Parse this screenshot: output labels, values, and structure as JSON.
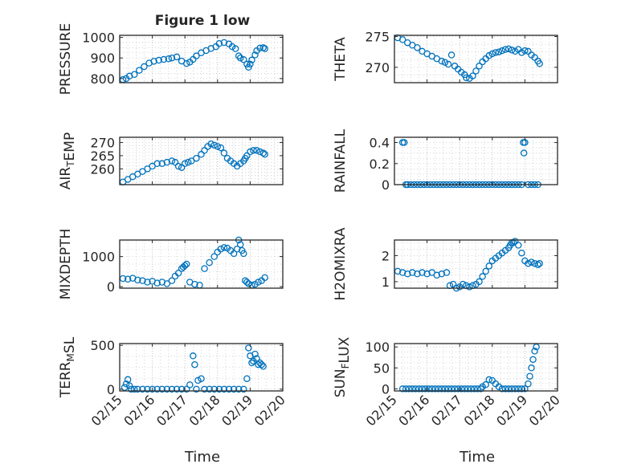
{
  "figure": {
    "title": "Figure 1 low",
    "x_label": "Time"
  },
  "x_ticks": [
    "02/15",
    "02/16",
    "02/17",
    "02/18",
    "02/19",
    "02/20"
  ],
  "colors": {
    "marker": "#0072BD",
    "axes": "#262626",
    "grid": "#b8b8b8"
  },
  "chart_data": [
    {
      "type": "scatter",
      "ylabel": "PRESSURE",
      "xlim": [
        0,
        5
      ],
      "ylim": [
        780,
        1010
      ],
      "yticks": [
        800,
        900,
        1000
      ],
      "grid": true,
      "x": [
        0.1,
        0.2,
        0.3,
        0.45,
        0.6,
        0.75,
        0.9,
        1.05,
        1.2,
        1.35,
        1.5,
        1.6,
        1.75,
        1.9,
        2.05,
        2.15,
        2.25,
        2.35,
        2.5,
        2.65,
        2.8,
        2.95,
        3.05,
        3.2,
        3.35,
        3.45,
        3.55,
        3.65,
        3.7,
        3.8,
        3.9,
        3.95,
        4.0,
        4.05,
        4.15,
        4.2,
        4.3,
        4.4,
        4.45
      ],
      "y": [
        795,
        800,
        812,
        820,
        840,
        858,
        875,
        884,
        889,
        893,
        896,
        900,
        905,
        885,
        873,
        880,
        893,
        910,
        925,
        936,
        946,
        955,
        970,
        975,
        968,
        955,
        945,
        910,
        900,
        892,
        870,
        855,
        870,
        890,
        915,
        935,
        948,
        950,
        945
      ]
    },
    {
      "type": "scatter",
      "ylabel": "THETA",
      "xlim": [
        0,
        5
      ],
      "ylim": [
        267.5,
        275.2
      ],
      "yticks": [
        270,
        275
      ],
      "grid": true,
      "x": [
        0.1,
        0.25,
        0.4,
        0.55,
        0.7,
        0.85,
        1.0,
        1.15,
        1.3,
        1.45,
        1.55,
        1.65,
        1.75,
        1.85,
        1.95,
        2.05,
        2.15,
        2.2,
        2.3,
        2.4,
        2.5,
        2.6,
        2.7,
        2.8,
        2.9,
        3.0,
        3.1,
        3.2,
        3.3,
        3.4,
        3.5,
        3.6,
        3.7,
        3.8,
        3.9,
        4.0,
        4.1,
        4.2,
        4.3,
        4.4,
        4.45
      ],
      "y": [
        274.8,
        274.5,
        274.0,
        273.6,
        273.2,
        272.6,
        272.2,
        271.8,
        271.4,
        271.0,
        270.8,
        270.5,
        272.0,
        270.2,
        269.7,
        269.2,
        268.8,
        268.3,
        268.2,
        268.6,
        269.4,
        270.2,
        270.9,
        271.4,
        271.9,
        272.2,
        272.4,
        272.5,
        272.7,
        272.9,
        273.0,
        272.8,
        272.6,
        272.9,
        272.4,
        272.7,
        272.6,
        272.0,
        271.6,
        271.0,
        270.6
      ]
    },
    {
      "type": "scatter",
      "ylabel": "AIRTEMP",
      "xlim": [
        0,
        5
      ],
      "ylim": [
        254,
        272
      ],
      "yticks": [
        260,
        265,
        270
      ],
      "grid": true,
      "x": [
        0.1,
        0.25,
        0.4,
        0.55,
        0.7,
        0.85,
        1.0,
        1.15,
        1.3,
        1.45,
        1.6,
        1.7,
        1.8,
        1.9,
        2.0,
        2.1,
        2.2,
        2.35,
        2.5,
        2.6,
        2.7,
        2.8,
        2.9,
        3.0,
        3.1,
        3.2,
        3.3,
        3.4,
        3.5,
        3.6,
        3.7,
        3.8,
        3.85,
        3.9,
        4.0,
        4.1,
        4.2,
        4.3,
        4.4,
        4.45
      ],
      "y": [
        255,
        256,
        257,
        258,
        259,
        260,
        261,
        262,
        262,
        262.5,
        263,
        262.5,
        261,
        260.5,
        262,
        262.5,
        263,
        264,
        265.5,
        267,
        268.5,
        269.5,
        269,
        268.5,
        268,
        266,
        264,
        263,
        262,
        261,
        262,
        263,
        264,
        265,
        266.5,
        267,
        267,
        266.5,
        266,
        265.5
      ]
    },
    {
      "type": "scatter",
      "ylabel": "RAINFALL",
      "xlim": [
        0,
        5
      ],
      "ylim": [
        0,
        0.45
      ],
      "yticks": [
        0,
        0.2,
        0.4
      ],
      "grid": true,
      "x": [
        0.25,
        0.3,
        0.35,
        0.4,
        0.5,
        0.6,
        0.7,
        0.8,
        0.9,
        1.0,
        1.1,
        1.2,
        1.3,
        1.4,
        1.5,
        1.6,
        1.7,
        1.8,
        1.9,
        2.0,
        2.1,
        2.2,
        2.3,
        2.4,
        2.5,
        2.6,
        2.7,
        2.8,
        2.9,
        3.0,
        3.1,
        3.2,
        3.3,
        3.4,
        3.5,
        3.6,
        3.7,
        3.8,
        3.9,
        3.95,
        3.97,
        4.0,
        4.1,
        4.2,
        4.3,
        4.4
      ],
      "y": [
        0.4,
        0.4,
        0,
        0,
        0,
        0,
        0,
        0,
        0,
        0,
        0,
        0,
        0,
        0,
        0,
        0,
        0,
        0,
        0,
        0,
        0,
        0,
        0,
        0,
        0,
        0,
        0,
        0,
        0,
        0,
        0,
        0,
        0,
        0,
        0,
        0,
        0,
        0,
        0,
        0.4,
        0.3,
        0.4,
        0,
        0,
        0,
        0
      ]
    },
    {
      "type": "scatter",
      "ylabel": "MIXDEPTH",
      "xlim": [
        0,
        5
      ],
      "ylim": [
        -50,
        1550
      ],
      "yticks": [
        0,
        1000
      ],
      "grid": true,
      "x": [
        0.1,
        0.25,
        0.4,
        0.55,
        0.7,
        0.85,
        1.0,
        1.15,
        1.3,
        1.45,
        1.6,
        1.7,
        1.8,
        1.9,
        1.95,
        2.0,
        2.05,
        2.15,
        2.3,
        2.45,
        2.6,
        2.75,
        2.9,
        3.0,
        3.1,
        3.2,
        3.3,
        3.4,
        3.5,
        3.6,
        3.65,
        3.7,
        3.75,
        3.8,
        3.85,
        3.9,
        3.95,
        4.05,
        4.15,
        4.25,
        4.35,
        4.45
      ],
      "y": [
        270,
        250,
        280,
        220,
        200,
        150,
        180,
        120,
        150,
        100,
        200,
        350,
        450,
        600,
        650,
        700,
        750,
        150,
        80,
        50,
        600,
        800,
        1000,
        1150,
        1250,
        1300,
        1280,
        1200,
        1100,
        1250,
        1550,
        1400,
        1200,
        1100,
        200,
        150,
        100,
        50,
        80,
        150,
        200,
        300
      ]
    },
    {
      "type": "scatter",
      "ylabel": "H2OMIXRA",
      "xlim": [
        0,
        5
      ],
      "ylim": [
        0.75,
        2.6
      ],
      "yticks": [
        1,
        2
      ],
      "grid": true,
      "x": [
        0.1,
        0.25,
        0.4,
        0.55,
        0.7,
        0.85,
        1.0,
        1.15,
        1.3,
        1.45,
        1.6,
        1.7,
        1.8,
        1.9,
        2.0,
        2.1,
        2.2,
        2.3,
        2.4,
        2.5,
        2.6,
        2.7,
        2.8,
        2.9,
        3.0,
        3.1,
        3.2,
        3.3,
        3.4,
        3.5,
        3.55,
        3.6,
        3.65,
        3.7,
        3.8,
        3.9,
        4.0,
        4.1,
        4.2,
        4.3,
        4.4,
        4.45
      ],
      "y": [
        1.4,
        1.35,
        1.3,
        1.35,
        1.3,
        1.35,
        1.3,
        1.35,
        1.25,
        1.3,
        1.35,
        0.85,
        0.9,
        0.75,
        0.8,
        0.9,
        0.85,
        0.8,
        0.85,
        0.9,
        1.0,
        1.2,
        1.4,
        1.6,
        1.8,
        1.9,
        2.0,
        2.1,
        2.2,
        2.3,
        2.4,
        2.5,
        2.5,
        2.55,
        2.4,
        2.1,
        1.8,
        1.7,
        1.75,
        1.7,
        1.65,
        1.7
      ]
    },
    {
      "type": "scatter",
      "ylabel": "TERRMSL",
      "xlim": [
        0,
        5
      ],
      "ylim": [
        -20,
        520
      ],
      "yticks": [
        0,
        500
      ],
      "grid": true,
      "x": [
        0.15,
        0.2,
        0.25,
        0.3,
        0.35,
        0.45,
        0.55,
        0.7,
        0.85,
        1.0,
        1.15,
        1.3,
        1.45,
        1.6,
        1.75,
        1.9,
        2.05,
        2.15,
        2.25,
        2.3,
        2.35,
        2.4,
        2.5,
        2.6,
        2.75,
        2.9,
        3.05,
        3.2,
        3.35,
        3.5,
        3.65,
        3.8,
        3.9,
        3.95,
        4.0,
        4.05,
        4.1,
        4.15,
        4.2,
        4.25,
        4.3,
        4.35,
        4.4
      ],
      "y": [
        20,
        60,
        110,
        40,
        0,
        0,
        0,
        0,
        0,
        0,
        0,
        0,
        0,
        0,
        0,
        0,
        0,
        50,
        380,
        280,
        0,
        100,
        120,
        0,
        0,
        0,
        0,
        0,
        0,
        0,
        0,
        0,
        120,
        470,
        380,
        300,
        320,
        400,
        350,
        280,
        300,
        280,
        260
      ]
    },
    {
      "type": "scatter",
      "ylabel": "SUNFLUX",
      "xlim": [
        0,
        5
      ],
      "ylim": [
        -5,
        108
      ],
      "yticks": [
        0,
        50,
        100
      ],
      "grid": true,
      "x": [
        0.25,
        0.35,
        0.45,
        0.55,
        0.65,
        0.75,
        0.85,
        0.95,
        1.05,
        1.15,
        1.25,
        1.35,
        1.45,
        1.55,
        1.65,
        1.75,
        1.85,
        1.95,
        2.05,
        2.15,
        2.25,
        2.35,
        2.45,
        2.55,
        2.65,
        2.7,
        2.8,
        2.9,
        3.0,
        3.1,
        3.2,
        3.3,
        3.4,
        3.5,
        3.6,
        3.7,
        3.8,
        3.9,
        4.0,
        4.1,
        4.15,
        4.2,
        4.25,
        4.3,
        4.35
      ],
      "y": [
        0,
        0,
        0,
        0,
        0,
        0,
        0,
        0,
        0,
        0,
        0,
        0,
        0,
        0,
        0,
        0,
        0,
        0,
        0,
        0,
        0,
        0,
        0,
        0,
        0,
        5,
        10,
        22,
        20,
        12,
        5,
        0,
        0,
        0,
        0,
        0,
        0,
        0,
        0,
        12,
        30,
        50,
        70,
        90,
        100
      ]
    }
  ]
}
